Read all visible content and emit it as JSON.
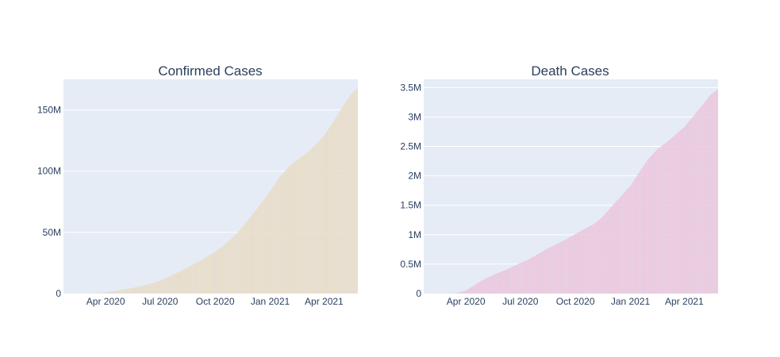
{
  "chart_data": [
    {
      "type": "bar",
      "title": "Confirmed Cases",
      "xlabel": "",
      "ylabel": "",
      "x_start": "2020-01-22",
      "x_end": "2021-05-27",
      "x_ticks": [
        {
          "date": "2020-04-01",
          "label": "Apr 2020"
        },
        {
          "date": "2020-07-01",
          "label": "Jul 2020"
        },
        {
          "date": "2020-10-01",
          "label": "Oct 2020"
        },
        {
          "date": "2021-01-01",
          "label": "Jan 2021"
        },
        {
          "date": "2021-04-01",
          "label": "Apr 2021"
        }
      ],
      "y_ticks": [
        {
          "value": 0,
          "label": "0"
        },
        {
          "value": 50000000,
          "label": "50M"
        },
        {
          "value": 100000000,
          "label": "100M"
        },
        {
          "value": 150000000,
          "label": "150M"
        }
      ],
      "ylim": [
        0,
        175000000
      ],
      "grid": true,
      "colors": {
        "bar": "#e8dcc7",
        "plot_bg": "#e5ecf6",
        "grid": "#ffffff",
        "text": "#2a3f5f"
      },
      "points": [
        {
          "date": "2020-01-22",
          "value": 0
        },
        {
          "date": "2020-02-15",
          "value": 70000
        },
        {
          "date": "2020-03-01",
          "value": 90000
        },
        {
          "date": "2020-03-15",
          "value": 180000
        },
        {
          "date": "2020-04-01",
          "value": 900000
        },
        {
          "date": "2020-04-15",
          "value": 2000000
        },
        {
          "date": "2020-05-01",
          "value": 3300000
        },
        {
          "date": "2020-05-15",
          "value": 4500000
        },
        {
          "date": "2020-06-01",
          "value": 6200000
        },
        {
          "date": "2020-06-15",
          "value": 8000000
        },
        {
          "date": "2020-07-01",
          "value": 10500000
        },
        {
          "date": "2020-07-15",
          "value": 13500000
        },
        {
          "date": "2020-08-01",
          "value": 17500000
        },
        {
          "date": "2020-08-15",
          "value": 21000000
        },
        {
          "date": "2020-09-01",
          "value": 25500000
        },
        {
          "date": "2020-09-15",
          "value": 29500000
        },
        {
          "date": "2020-10-01",
          "value": 34000000
        },
        {
          "date": "2020-10-15",
          "value": 39000000
        },
        {
          "date": "2020-11-01",
          "value": 46500000
        },
        {
          "date": "2020-11-15",
          "value": 54000000
        },
        {
          "date": "2020-12-01",
          "value": 63500000
        },
        {
          "date": "2020-12-15",
          "value": 72500000
        },
        {
          "date": "2021-01-01",
          "value": 83500000
        },
        {
          "date": "2021-01-15",
          "value": 94000000
        },
        {
          "date": "2021-02-01",
          "value": 103500000
        },
        {
          "date": "2021-02-15",
          "value": 109000000
        },
        {
          "date": "2021-03-01",
          "value": 114000000
        },
        {
          "date": "2021-03-15",
          "value": 120000000
        },
        {
          "date": "2021-04-01",
          "value": 129000000
        },
        {
          "date": "2021-04-15",
          "value": 139000000
        },
        {
          "date": "2021-05-01",
          "value": 152000000
        },
        {
          "date": "2021-05-15",
          "value": 162000000
        },
        {
          "date": "2021-05-27",
          "value": 168000000
        }
      ]
    },
    {
      "type": "bar",
      "title": "Death Cases",
      "xlabel": "",
      "ylabel": "",
      "x_start": "2020-01-22",
      "x_end": "2021-05-27",
      "x_ticks": [
        {
          "date": "2020-04-01",
          "label": "Apr 2020"
        },
        {
          "date": "2020-07-01",
          "label": "Jul 2020"
        },
        {
          "date": "2020-10-01",
          "label": "Oct 2020"
        },
        {
          "date": "2021-01-01",
          "label": "Jan 2021"
        },
        {
          "date": "2021-04-01",
          "label": "Apr 2021"
        }
      ],
      "y_ticks": [
        {
          "value": 0,
          "label": "0"
        },
        {
          "value": 500000,
          "label": "0.5M"
        },
        {
          "value": 1000000,
          "label": "1M"
        },
        {
          "value": 1500000,
          "label": "1.5M"
        },
        {
          "value": 2000000,
          "label": "2M"
        },
        {
          "value": 2500000,
          "label": "2.5M"
        },
        {
          "value": 3000000,
          "label": "3M"
        },
        {
          "value": 3500000,
          "label": "3.5M"
        }
      ],
      "ylim": [
        0,
        3640000
      ],
      "grid": true,
      "colors": {
        "bar": "#ebc6dc",
        "plot_bg": "#e5ecf6",
        "grid": "#ffffff",
        "text": "#2a3f5f"
      },
      "points": [
        {
          "date": "2020-01-22",
          "value": 0
        },
        {
          "date": "2020-03-01",
          "value": 3000
        },
        {
          "date": "2020-03-15",
          "value": 7000
        },
        {
          "date": "2020-04-01",
          "value": 50000
        },
        {
          "date": "2020-04-15",
          "value": 140000
        },
        {
          "date": "2020-05-01",
          "value": 240000
        },
        {
          "date": "2020-05-15",
          "value": 310000
        },
        {
          "date": "2020-06-01",
          "value": 380000
        },
        {
          "date": "2020-06-15",
          "value": 440000
        },
        {
          "date": "2020-07-01",
          "value": 520000
        },
        {
          "date": "2020-07-15",
          "value": 580000
        },
        {
          "date": "2020-08-01",
          "value": 680000
        },
        {
          "date": "2020-08-15",
          "value": 760000
        },
        {
          "date": "2020-09-01",
          "value": 850000
        },
        {
          "date": "2020-09-15",
          "value": 920000
        },
        {
          "date": "2020-10-01",
          "value": 1010000
        },
        {
          "date": "2020-10-15",
          "value": 1090000
        },
        {
          "date": "2020-11-01",
          "value": 1180000
        },
        {
          "date": "2020-11-15",
          "value": 1300000
        },
        {
          "date": "2020-12-01",
          "value": 1480000
        },
        {
          "date": "2020-12-15",
          "value": 1640000
        },
        {
          "date": "2021-01-01",
          "value": 1830000
        },
        {
          "date": "2021-01-15",
          "value": 2050000
        },
        {
          "date": "2021-02-01",
          "value": 2300000
        },
        {
          "date": "2021-02-15",
          "value": 2450000
        },
        {
          "date": "2021-03-01",
          "value": 2560000
        },
        {
          "date": "2021-03-15",
          "value": 2680000
        },
        {
          "date": "2021-04-01",
          "value": 2830000
        },
        {
          "date": "2021-04-15",
          "value": 3000000
        },
        {
          "date": "2021-05-01",
          "value": 3200000
        },
        {
          "date": "2021-05-15",
          "value": 3380000
        },
        {
          "date": "2021-05-27",
          "value": 3470000
        }
      ]
    }
  ]
}
